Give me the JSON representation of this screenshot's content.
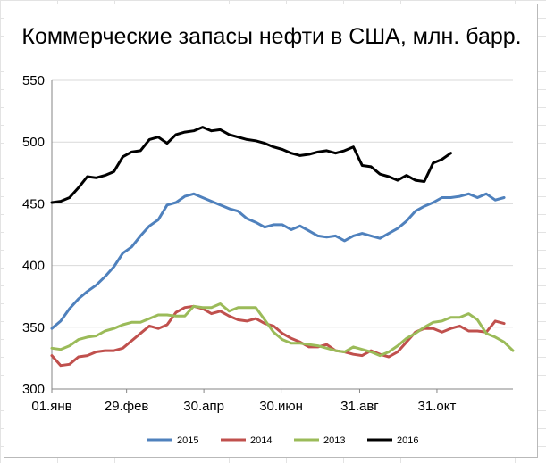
{
  "chart_data": {
    "type": "line",
    "title": "Коммерческие запасы нефти в США, млн. барр.",
    "xlabel": "",
    "ylabel": "",
    "ylim": [
      300,
      550
    ],
    "yticks": [
      300,
      350,
      400,
      450,
      500,
      550
    ],
    "xlim": [
      1,
      365
    ],
    "xticks": [
      {
        "label": "01.янв",
        "day": 1
      },
      {
        "label": "29.фев",
        "day": 60
      },
      {
        "label": "30.апр",
        "day": 121
      },
      {
        "label": "30.июн",
        "day": 182
      },
      {
        "label": "31.авг",
        "day": 244
      },
      {
        "label": "31.окт",
        "day": 305
      }
    ],
    "grid": {
      "horizontal": true,
      "vertical": false
    },
    "legend": "bottom",
    "series": [
      {
        "name": "2015",
        "color": "#4f81bd",
        "values": [
          349,
          355,
          365,
          373,
          379,
          384,
          391,
          399,
          410,
          415,
          424,
          432,
          437,
          449,
          451,
          456,
          458,
          455,
          452,
          449,
          446,
          444,
          438,
          435,
          431,
          433,
          433,
          429,
          432,
          428,
          424,
          423,
          424,
          420,
          424,
          426,
          424,
          422,
          426,
          430,
          436,
          444,
          448,
          451,
          455,
          455,
          456,
          458,
          455,
          458,
          453,
          455
        ]
      },
      {
        "name": "2014",
        "color": "#c0504d",
        "values": [
          327,
          319,
          320,
          326,
          327,
          330,
          331,
          331,
          333,
          339,
          345,
          351,
          349,
          352,
          362,
          366,
          367,
          365,
          361,
          363,
          359,
          356,
          355,
          357,
          353,
          351,
          345,
          341,
          338,
          334,
          334,
          336,
          331,
          330,
          328,
          327,
          331,
          328,
          326,
          330,
          338,
          346,
          349,
          349,
          346,
          349,
          351,
          347,
          347,
          346,
          355,
          353
        ]
      },
      {
        "name": "2013",
        "color": "#9bbb59",
        "values": [
          333,
          332,
          335,
          340,
          342,
          343,
          347,
          349,
          352,
          354,
          354,
          357,
          360,
          360,
          359,
          359,
          367,
          366,
          366,
          369,
          363,
          366,
          366,
          366,
          356,
          346,
          340,
          337,
          337,
          336,
          335,
          333,
          331,
          330,
          334,
          332,
          330,
          327,
          330,
          335,
          341,
          345,
          350,
          354,
          355,
          358,
          358,
          361,
          356,
          345,
          342,
          338,
          331
        ]
      },
      {
        "name": "2016",
        "color": "#000000",
        "values": [
          451,
          452,
          455,
          463,
          472,
          471,
          473,
          476,
          488,
          492,
          493,
          502,
          504,
          499,
          506,
          508,
          509,
          512,
          509,
          510,
          506,
          504,
          502,
          501,
          499,
          496,
          494,
          491,
          489,
          490,
          492,
          493,
          491,
          493,
          496,
          481,
          480,
          474,
          472,
          469,
          473,
          469,
          468,
          483,
          486,
          491
        ]
      }
    ]
  }
}
